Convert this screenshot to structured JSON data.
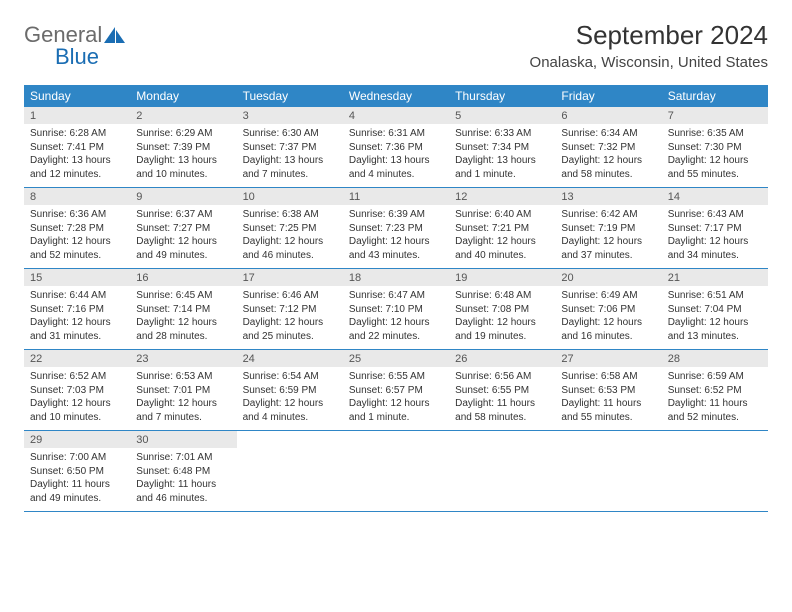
{
  "logo": {
    "text1": "General",
    "text2": "Blue"
  },
  "title": "September 2024",
  "location": "Onalaska, Wisconsin, United States",
  "colors": {
    "header_blue": "#2f86c6",
    "daynum_bg": "#e9e9e9",
    "logo_blue": "#1a6db3",
    "logo_gray": "#6b6b6b"
  },
  "dow": [
    "Sunday",
    "Monday",
    "Tuesday",
    "Wednesday",
    "Thursday",
    "Friday",
    "Saturday"
  ],
  "weeks": [
    [
      {
        "n": "1",
        "sr": "Sunrise: 6:28 AM",
        "ss": "Sunset: 7:41 PM",
        "d1": "Daylight: 13 hours",
        "d2": "and 12 minutes."
      },
      {
        "n": "2",
        "sr": "Sunrise: 6:29 AM",
        "ss": "Sunset: 7:39 PM",
        "d1": "Daylight: 13 hours",
        "d2": "and 10 minutes."
      },
      {
        "n": "3",
        "sr": "Sunrise: 6:30 AM",
        "ss": "Sunset: 7:37 PM",
        "d1": "Daylight: 13 hours",
        "d2": "and 7 minutes."
      },
      {
        "n": "4",
        "sr": "Sunrise: 6:31 AM",
        "ss": "Sunset: 7:36 PM",
        "d1": "Daylight: 13 hours",
        "d2": "and 4 minutes."
      },
      {
        "n": "5",
        "sr": "Sunrise: 6:33 AM",
        "ss": "Sunset: 7:34 PM",
        "d1": "Daylight: 13 hours",
        "d2": "and 1 minute."
      },
      {
        "n": "6",
        "sr": "Sunrise: 6:34 AM",
        "ss": "Sunset: 7:32 PM",
        "d1": "Daylight: 12 hours",
        "d2": "and 58 minutes."
      },
      {
        "n": "7",
        "sr": "Sunrise: 6:35 AM",
        "ss": "Sunset: 7:30 PM",
        "d1": "Daylight: 12 hours",
        "d2": "and 55 minutes."
      }
    ],
    [
      {
        "n": "8",
        "sr": "Sunrise: 6:36 AM",
        "ss": "Sunset: 7:28 PM",
        "d1": "Daylight: 12 hours",
        "d2": "and 52 minutes."
      },
      {
        "n": "9",
        "sr": "Sunrise: 6:37 AM",
        "ss": "Sunset: 7:27 PM",
        "d1": "Daylight: 12 hours",
        "d2": "and 49 minutes."
      },
      {
        "n": "10",
        "sr": "Sunrise: 6:38 AM",
        "ss": "Sunset: 7:25 PM",
        "d1": "Daylight: 12 hours",
        "d2": "and 46 minutes."
      },
      {
        "n": "11",
        "sr": "Sunrise: 6:39 AM",
        "ss": "Sunset: 7:23 PM",
        "d1": "Daylight: 12 hours",
        "d2": "and 43 minutes."
      },
      {
        "n": "12",
        "sr": "Sunrise: 6:40 AM",
        "ss": "Sunset: 7:21 PM",
        "d1": "Daylight: 12 hours",
        "d2": "and 40 minutes."
      },
      {
        "n": "13",
        "sr": "Sunrise: 6:42 AM",
        "ss": "Sunset: 7:19 PM",
        "d1": "Daylight: 12 hours",
        "d2": "and 37 minutes."
      },
      {
        "n": "14",
        "sr": "Sunrise: 6:43 AM",
        "ss": "Sunset: 7:17 PM",
        "d1": "Daylight: 12 hours",
        "d2": "and 34 minutes."
      }
    ],
    [
      {
        "n": "15",
        "sr": "Sunrise: 6:44 AM",
        "ss": "Sunset: 7:16 PM",
        "d1": "Daylight: 12 hours",
        "d2": "and 31 minutes."
      },
      {
        "n": "16",
        "sr": "Sunrise: 6:45 AM",
        "ss": "Sunset: 7:14 PM",
        "d1": "Daylight: 12 hours",
        "d2": "and 28 minutes."
      },
      {
        "n": "17",
        "sr": "Sunrise: 6:46 AM",
        "ss": "Sunset: 7:12 PM",
        "d1": "Daylight: 12 hours",
        "d2": "and 25 minutes."
      },
      {
        "n": "18",
        "sr": "Sunrise: 6:47 AM",
        "ss": "Sunset: 7:10 PM",
        "d1": "Daylight: 12 hours",
        "d2": "and 22 minutes."
      },
      {
        "n": "19",
        "sr": "Sunrise: 6:48 AM",
        "ss": "Sunset: 7:08 PM",
        "d1": "Daylight: 12 hours",
        "d2": "and 19 minutes."
      },
      {
        "n": "20",
        "sr": "Sunrise: 6:49 AM",
        "ss": "Sunset: 7:06 PM",
        "d1": "Daylight: 12 hours",
        "d2": "and 16 minutes."
      },
      {
        "n": "21",
        "sr": "Sunrise: 6:51 AM",
        "ss": "Sunset: 7:04 PM",
        "d1": "Daylight: 12 hours",
        "d2": "and 13 minutes."
      }
    ],
    [
      {
        "n": "22",
        "sr": "Sunrise: 6:52 AM",
        "ss": "Sunset: 7:03 PM",
        "d1": "Daylight: 12 hours",
        "d2": "and 10 minutes."
      },
      {
        "n": "23",
        "sr": "Sunrise: 6:53 AM",
        "ss": "Sunset: 7:01 PM",
        "d1": "Daylight: 12 hours",
        "d2": "and 7 minutes."
      },
      {
        "n": "24",
        "sr": "Sunrise: 6:54 AM",
        "ss": "Sunset: 6:59 PM",
        "d1": "Daylight: 12 hours",
        "d2": "and 4 minutes."
      },
      {
        "n": "25",
        "sr": "Sunrise: 6:55 AM",
        "ss": "Sunset: 6:57 PM",
        "d1": "Daylight: 12 hours",
        "d2": "and 1 minute."
      },
      {
        "n": "26",
        "sr": "Sunrise: 6:56 AM",
        "ss": "Sunset: 6:55 PM",
        "d1": "Daylight: 11 hours",
        "d2": "and 58 minutes."
      },
      {
        "n": "27",
        "sr": "Sunrise: 6:58 AM",
        "ss": "Sunset: 6:53 PM",
        "d1": "Daylight: 11 hours",
        "d2": "and 55 minutes."
      },
      {
        "n": "28",
        "sr": "Sunrise: 6:59 AM",
        "ss": "Sunset: 6:52 PM",
        "d1": "Daylight: 11 hours",
        "d2": "and 52 minutes."
      }
    ],
    [
      {
        "n": "29",
        "sr": "Sunrise: 7:00 AM",
        "ss": "Sunset: 6:50 PM",
        "d1": "Daylight: 11 hours",
        "d2": "and 49 minutes."
      },
      {
        "n": "30",
        "sr": "Sunrise: 7:01 AM",
        "ss": "Sunset: 6:48 PM",
        "d1": "Daylight: 11 hours",
        "d2": "and 46 minutes."
      },
      {
        "empty": true
      },
      {
        "empty": true
      },
      {
        "empty": true
      },
      {
        "empty": true
      },
      {
        "empty": true
      }
    ]
  ]
}
